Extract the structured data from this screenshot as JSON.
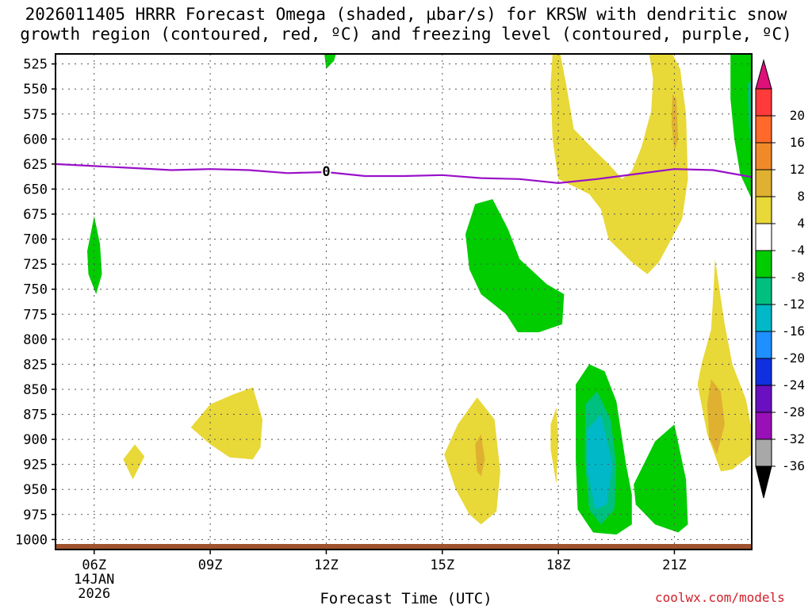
{
  "title_line1": "2026011405 HRRR Forecast Omega (shaded, µbar/s) for KRSW with dendritic snow",
  "title_line2": "growth region (contoured, red, ºC) and freezing level (contoured, purple, ºC)",
  "credit": "coolwx.com/models",
  "chart_data": {
    "type": "contour",
    "title": "2026011405 HRRR Forecast Omega (shaded, µbar/s) for KRSW with dendritic snow growth region (contoured, red, ºC) and freezing level (contoured, purple, ºC)",
    "xlabel": "Forecast Time (UTC)",
    "ylabel": "",
    "x_range_hours": [
      5.0,
      23.0
    ],
    "y_range_hpa": [
      1010,
      515
    ],
    "y_ticks": [
      525,
      550,
      575,
      600,
      625,
      650,
      675,
      700,
      725,
      750,
      775,
      800,
      825,
      850,
      875,
      900,
      925,
      950,
      975,
      1000
    ],
    "x_ticks": [
      {
        "hour": 6,
        "label": "06Z",
        "sub1": "14JAN",
        "sub2": "2026"
      },
      {
        "hour": 9,
        "label": "09Z",
        "sub1": "",
        "sub2": ""
      },
      {
        "hour": 12,
        "label": "12Z",
        "sub1": "",
        "sub2": ""
      },
      {
        "hour": 15,
        "label": "15Z",
        "sub1": "",
        "sub2": ""
      },
      {
        "hour": 18,
        "label": "18Z",
        "sub1": "",
        "sub2": ""
      },
      {
        "hour": 21,
        "label": "21Z",
        "sub1": "",
        "sub2": ""
      }
    ],
    "grid": true,
    "colorbar": {
      "labels": [
        "20",
        "16",
        "12",
        "8",
        "4",
        "-4",
        "-8",
        "-12",
        "-16",
        "-20",
        "-24",
        "-28",
        "-32",
        "-36"
      ],
      "colors": [
        "#ff3a3a",
        "#ff6a2a",
        "#f08a28",
        "#e0b030",
        "#e8d838",
        "#ffffff",
        "#00cc00",
        "#00c080",
        "#00b8c8",
        "#1e90ff",
        "#1030e0",
        "#6a10c0",
        "#9a10b8",
        "#a8a8a8"
      ],
      "top_arrow_color": "#e0107a",
      "bottom_arrow_color": "#000000"
    },
    "freezing_level": {
      "label": "0",
      "label_hour": 12.0,
      "color": "#9910c8",
      "points": [
        [
          5.0,
          625
        ],
        [
          6.0,
          627
        ],
        [
          7.0,
          629
        ],
        [
          8.0,
          631
        ],
        [
          9.0,
          630
        ],
        [
          10.0,
          631
        ],
        [
          11.0,
          634
        ],
        [
          12.0,
          633
        ],
        [
          13.0,
          637
        ],
        [
          14.0,
          637
        ],
        [
          15.0,
          636
        ],
        [
          16.0,
          639
        ],
        [
          17.0,
          640
        ],
        [
          18.0,
          644
        ],
        [
          19.0,
          640
        ],
        [
          20.0,
          635
        ],
        [
          21.0,
          630
        ],
        [
          22.0,
          631
        ],
        [
          23.0,
          638
        ]
      ]
    },
    "terrain_color": "#a0522d",
    "omega_regions": [
      {
        "name": "green-top-12z",
        "color": "#00cc00",
        "points": [
          [
            11.95,
            515
          ],
          [
            12.25,
            515
          ],
          [
            12.2,
            522
          ],
          [
            12.0,
            530
          ]
        ]
      },
      {
        "name": "green-top-right",
        "color": "#00cc00",
        "points": [
          [
            22.45,
            515
          ],
          [
            23.0,
            515
          ],
          [
            23.0,
            660
          ],
          [
            22.7,
            635
          ],
          [
            22.55,
            600
          ],
          [
            22.45,
            560
          ]
        ]
      },
      {
        "name": "cyan-top-right",
        "color": "#00c080",
        "points": [
          [
            22.9,
            545
          ],
          [
            23.0,
            540
          ],
          [
            23.0,
            610
          ],
          [
            22.92,
            585
          ]
        ]
      },
      {
        "name": "yellow-left-column",
        "color": "#e8d838",
        "points": [
          [
            17.85,
            515
          ],
          [
            18.05,
            515
          ],
          [
            18.2,
            545
          ],
          [
            18.4,
            590
          ],
          [
            18.9,
            610
          ],
          [
            19.3,
            625
          ],
          [
            19.65,
            640
          ],
          [
            19.9,
            632
          ],
          [
            20.15,
            608
          ],
          [
            20.4,
            572
          ],
          [
            20.45,
            540
          ],
          [
            20.35,
            515
          ],
          [
            20.95,
            515
          ],
          [
            21.15,
            530
          ],
          [
            21.3,
            575
          ],
          [
            21.35,
            640
          ],
          [
            21.2,
            680
          ],
          [
            20.6,
            723
          ],
          [
            20.3,
            735
          ],
          [
            19.9,
            723
          ],
          [
            19.3,
            700
          ],
          [
            19.1,
            670
          ],
          [
            18.8,
            655
          ],
          [
            18.0,
            640
          ],
          [
            17.85,
            600
          ],
          [
            17.8,
            545
          ]
        ]
      },
      {
        "name": "orange-top-21z",
        "color": "#e0b030",
        "points": [
          [
            20.95,
            555
          ],
          [
            21.05,
            560
          ],
          [
            21.1,
            600
          ],
          [
            21.0,
            612
          ],
          [
            20.93,
            585
          ]
        ]
      },
      {
        "name": "green-thin-06z",
        "color": "#00cc00",
        "points": [
          [
            6.0,
            677
          ],
          [
            6.15,
            705
          ],
          [
            6.2,
            735
          ],
          [
            6.05,
            755
          ],
          [
            5.85,
            735
          ],
          [
            5.82,
            712
          ]
        ]
      },
      {
        "name": "green-mid-16z",
        "color": "#00cc00",
        "points": [
          [
            15.85,
            665
          ],
          [
            16.3,
            660
          ],
          [
            16.7,
            690
          ],
          [
            17.0,
            720
          ],
          [
            17.7,
            745
          ],
          [
            18.15,
            755
          ],
          [
            18.1,
            785
          ],
          [
            17.5,
            793
          ],
          [
            16.95,
            793
          ],
          [
            16.65,
            775
          ],
          [
            16.0,
            755
          ],
          [
            15.7,
            730
          ],
          [
            15.6,
            695
          ]
        ]
      },
      {
        "name": "yellow-0930",
        "color": "#e8d838",
        "points": [
          [
            8.5,
            888
          ],
          [
            9.0,
            865
          ],
          [
            9.6,
            855
          ],
          [
            10.1,
            848
          ],
          [
            10.35,
            880
          ],
          [
            10.3,
            908
          ],
          [
            10.1,
            920
          ],
          [
            9.5,
            918
          ],
          [
            9.0,
            905
          ]
        ]
      },
      {
        "name": "yellow-07z-small",
        "color": "#e8d838",
        "points": [
          [
            6.75,
            920
          ],
          [
            7.05,
            905
          ],
          [
            7.3,
            917
          ],
          [
            7.0,
            940
          ]
        ]
      },
      {
        "name": "yellow-16z",
        "color": "#e8d838",
        "points": [
          [
            15.05,
            915
          ],
          [
            15.4,
            885
          ],
          [
            15.9,
            858
          ],
          [
            16.35,
            880
          ],
          [
            16.5,
            932
          ],
          [
            16.4,
            972
          ],
          [
            16.0,
            985
          ],
          [
            15.7,
            975
          ],
          [
            15.35,
            950
          ]
        ]
      },
      {
        "name": "orange-16z",
        "color": "#e0b030",
        "points": [
          [
            15.85,
            905
          ],
          [
            16.0,
            895
          ],
          [
            16.1,
            920
          ],
          [
            16.0,
            937
          ],
          [
            15.9,
            932
          ]
        ]
      },
      {
        "name": "yellow-1750-small",
        "color": "#e8d838",
        "points": [
          [
            17.8,
            885
          ],
          [
            17.95,
            868
          ],
          [
            18.0,
            900
          ],
          [
            17.95,
            945
          ],
          [
            17.8,
            910
          ]
        ]
      },
      {
        "name": "green-19z",
        "color": "#00cc00",
        "points": [
          [
            18.45,
            845
          ],
          [
            18.8,
            825
          ],
          [
            19.2,
            832
          ],
          [
            19.5,
            862
          ],
          [
            19.75,
            925
          ],
          [
            19.9,
            955
          ],
          [
            19.9,
            985
          ],
          [
            19.5,
            995
          ],
          [
            18.9,
            993
          ],
          [
            18.5,
            970
          ],
          [
            18.45,
            920
          ]
        ]
      },
      {
        "name": "teal-19z",
        "color": "#00c080",
        "points": [
          [
            18.7,
            865
          ],
          [
            19.0,
            852
          ],
          [
            19.35,
            880
          ],
          [
            19.5,
            925
          ],
          [
            19.45,
            970
          ],
          [
            19.1,
            985
          ],
          [
            18.8,
            970
          ],
          [
            18.68,
            920
          ]
        ]
      },
      {
        "name": "cyan-19z",
        "color": "#00b8c8",
        "points": [
          [
            18.75,
            890
          ],
          [
            19.1,
            875
          ],
          [
            19.4,
            925
          ],
          [
            19.25,
            965
          ],
          [
            18.95,
            970
          ],
          [
            18.75,
            930
          ]
        ]
      },
      {
        "name": "green-2030",
        "color": "#00cc00",
        "points": [
          [
            19.95,
            945
          ],
          [
            20.5,
            902
          ],
          [
            21.0,
            885
          ],
          [
            21.3,
            940
          ],
          [
            21.35,
            985
          ],
          [
            21.1,
            993
          ],
          [
            20.5,
            985
          ],
          [
            20.0,
            965
          ]
        ]
      },
      {
        "name": "yellow-22z",
        "color": "#e8d838",
        "points": [
          [
            22.05,
            720
          ],
          [
            22.3,
            785
          ],
          [
            22.5,
            825
          ],
          [
            22.85,
            860
          ],
          [
            23.0,
            890
          ],
          [
            23.0,
            915
          ],
          [
            22.5,
            930
          ],
          [
            22.2,
            932
          ],
          [
            21.85,
            895
          ],
          [
            21.6,
            845
          ],
          [
            21.7,
            825
          ],
          [
            21.95,
            790
          ],
          [
            22.0,
            760
          ]
        ]
      },
      {
        "name": "orange-22z",
        "color": "#e0b030",
        "points": [
          [
            21.95,
            840
          ],
          [
            22.2,
            852
          ],
          [
            22.3,
            885
          ],
          [
            22.1,
            915
          ],
          [
            21.9,
            898
          ],
          [
            21.85,
            865
          ]
        ]
      }
    ]
  }
}
